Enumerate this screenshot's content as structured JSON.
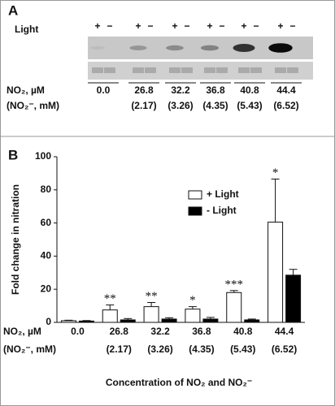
{
  "blot": {
    "panel_label": "A",
    "light_label": "Light",
    "light_signs": [
      "+",
      "−",
      "+",
      "−",
      "+",
      "−",
      "+",
      "−",
      "+",
      "−",
      "+",
      "−"
    ],
    "row_label": "NO₂, µM",
    "row_label_2": "(NO₂⁻, mM)",
    "concentrations": [
      "0.0",
      "26.8",
      "32.2",
      "36.8",
      "40.8",
      "44.4"
    ],
    "mM": [
      null,
      "(2.17)",
      "(3.26)",
      "(4.35)",
      "(5.43)",
      "(6.52)"
    ]
  },
  "chart_data": {
    "type": "bar",
    "panel_label": "B",
    "y_label": "Fold change in nitration",
    "x_label": "Concentration of NO₂ and NO₂⁻",
    "row_label": "NO₂, µM",
    "row_label_2": "(NO₂⁻, mM)",
    "categories": [
      "0.0",
      "26.8",
      "32.2",
      "36.8",
      "40.8",
      "44.4"
    ],
    "sub_categories": [
      null,
      "(2.17)",
      "(3.26)",
      "(4.35)",
      "(5.43)",
      "(6.52)"
    ],
    "series": [
      {
        "name": "+ Light",
        "color": "#ffffff",
        "values": [
          1,
          7.5,
          9.5,
          8,
          18,
          60.5
        ],
        "errors": [
          0.3,
          3,
          2.5,
          1.5,
          1.2,
          26
        ],
        "significance": [
          null,
          "**",
          "**",
          "*",
          "***",
          "*"
        ]
      },
      {
        "name": "- Light",
        "color": "#000000",
        "values": [
          0.8,
          1.5,
          2,
          2,
          1.5,
          28.5
        ],
        "errors": [
          0.3,
          0.8,
          0.8,
          1,
          0.5,
          3.5
        ]
      }
    ],
    "ylim": [
      0,
      100
    ],
    "yticks": [
      0,
      20,
      40,
      60,
      80,
      100
    ]
  }
}
